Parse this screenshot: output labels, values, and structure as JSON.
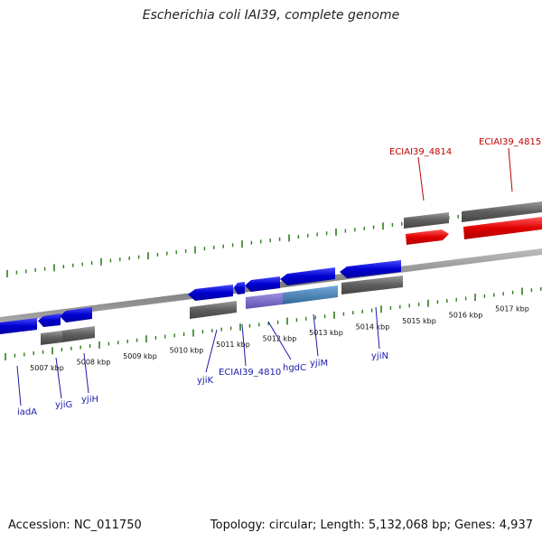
{
  "title": "Escherichia coli IAI39, complete genome",
  "footer": {
    "accession": "Accession: NC_011750",
    "summary": "Topology: circular; Length: 5,132,068 bp; Genes: 4,937"
  },
  "colors": {
    "backbone": "#8a8a8a",
    "tick": "#2e7d1a",
    "gene_forward": "#e00000",
    "gene_reverse": "#0a0ad8",
    "cds_gray": "#6e6e6e",
    "purple": "#7b6cc4",
    "steel": "#4a86b8",
    "label_forward": "#c00000",
    "label_reverse": "#1a1aa8"
  },
  "ticks": [
    {
      "label": "5007 kbp",
      "kbp": 5007
    },
    {
      "label": "5008 kbp",
      "kbp": 5008
    },
    {
      "label": "5009 kbp",
      "kbp": 5009
    },
    {
      "label": "5010 kbp",
      "kbp": 5010
    },
    {
      "label": "5011 kbp",
      "kbp": 5011
    },
    {
      "label": "5012 kbp",
      "kbp": 5012
    },
    {
      "label": "5013 kbp",
      "kbp": 5013
    },
    {
      "label": "5014 kbp",
      "kbp": 5014
    },
    {
      "label": "5015 kbp",
      "kbp": 5015
    },
    {
      "label": "5016 kbp",
      "kbp": 5016
    },
    {
      "label": "5017 kbp",
      "kbp": 5017
    }
  ],
  "gene_labels": [
    {
      "name": "iadA",
      "strand": "reverse"
    },
    {
      "name": "yjiG",
      "strand": "reverse"
    },
    {
      "name": "yjiH",
      "strand": "reverse"
    },
    {
      "name": "yjiK",
      "strand": "reverse"
    },
    {
      "name": "ECIAI39_4810",
      "strand": "reverse"
    },
    {
      "name": "hgdC",
      "strand": "reverse"
    },
    {
      "name": "yjiM",
      "strand": "reverse"
    },
    {
      "name": "yjiN",
      "strand": "reverse"
    },
    {
      "name": "ECIAI39_4814",
      "strand": "forward"
    },
    {
      "name": "ECIAI39_4815",
      "strand": "forward"
    }
  ]
}
